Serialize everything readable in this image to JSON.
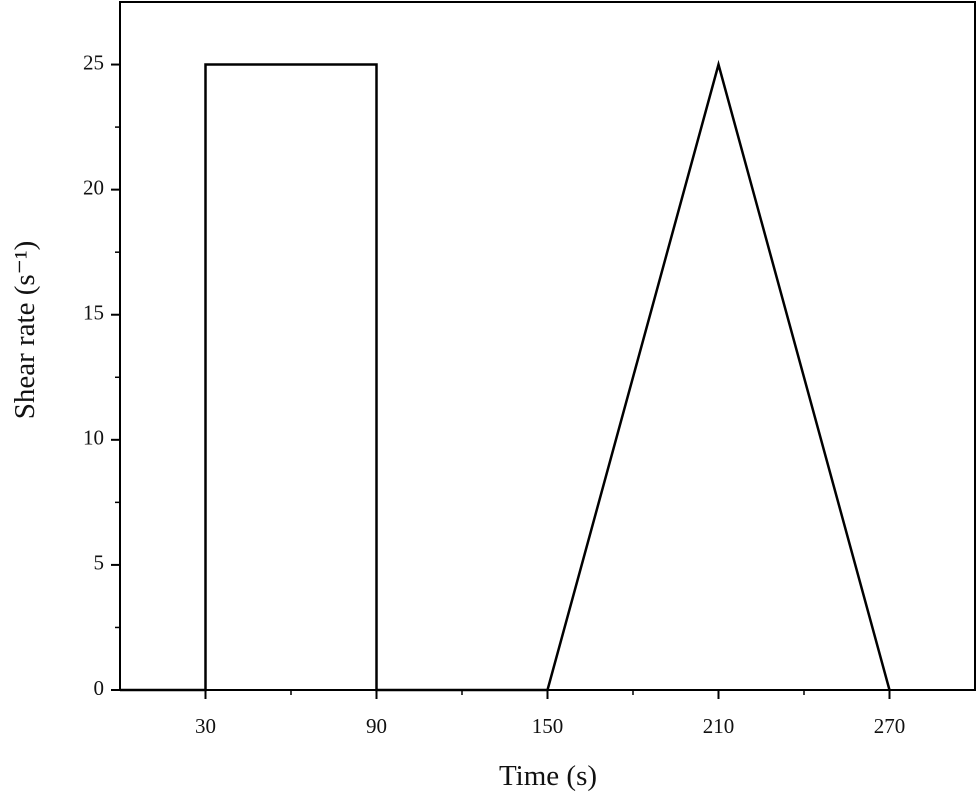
{
  "chart_data": {
    "type": "line",
    "xlabel": "Time (s)",
    "ylabel": "Shear rate (s⁻¹)",
    "x": [
      0,
      30,
      30,
      90,
      90,
      150,
      210,
      270
    ],
    "series": [
      {
        "color": "#000000",
        "values": [
          0,
          0,
          25,
          25,
          0,
          0,
          25,
          0
        ]
      }
    ],
    "xlim": [
      0,
      300
    ],
    "xticks": [
      30,
      90,
      150,
      210,
      270
    ],
    "xminorticks": [
      60,
      120,
      180,
      240
    ],
    "ylim": [
      0,
      27.5
    ],
    "yticks": [
      0,
      5,
      10,
      15,
      20,
      25
    ],
    "yminorticks": [
      2.5,
      7.5,
      12.5,
      17.5,
      22.5
    ],
    "grid": false
  }
}
